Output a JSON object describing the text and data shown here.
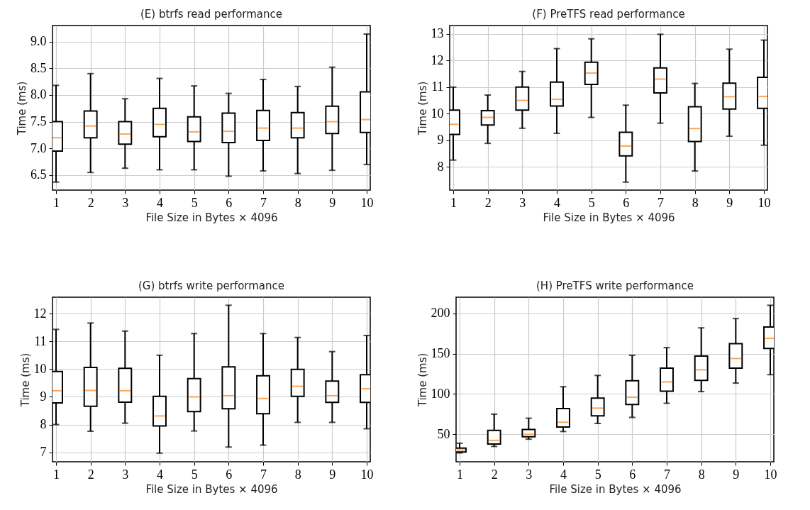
{
  "chart_data": [
    {
      "type": "box",
      "title": "(E) btrfs read performance",
      "xlabel": "File Size in Bytes × 4096",
      "ylabel": "Time (ms)",
      "x": [
        1,
        2,
        3,
        4,
        5,
        6,
        7,
        8,
        9,
        10
      ],
      "xlim": [
        1,
        10
      ],
      "xticks": [
        1,
        2,
        3,
        4,
        5,
        6,
        7,
        8,
        9,
        10
      ],
      "ylim": [
        6.22,
        9.3
      ],
      "yticks": [
        6.5,
        {
          "value": 7,
          "label": "7.0"
        },
        7.5,
        {
          "value": 8,
          "label": "8.0"
        },
        8.5,
        {
          "value": 9,
          "label": "9.0"
        }
      ],
      "grid": true,
      "boxes": [
        {
          "low": 6.37,
          "q1": 6.95,
          "median": 7.2,
          "q3": 7.5,
          "high": 8.18
        },
        {
          "low": 6.55,
          "q1": 7.2,
          "median": 7.42,
          "q3": 7.7,
          "high": 8.4
        },
        {
          "low": 6.63,
          "q1": 7.08,
          "median": 7.27,
          "q3": 7.5,
          "high": 7.93
        },
        {
          "low": 6.6,
          "q1": 7.22,
          "median": 7.45,
          "q3": 7.75,
          "high": 8.31
        },
        {
          "low": 6.6,
          "q1": 7.13,
          "median": 7.31,
          "q3": 7.59,
          "high": 8.17
        },
        {
          "low": 6.48,
          "q1": 7.11,
          "median": 7.32,
          "q3": 7.66,
          "high": 8.03
        },
        {
          "low": 6.58,
          "q1": 7.15,
          "median": 7.38,
          "q3": 7.71,
          "high": 8.29
        },
        {
          "low": 6.53,
          "q1": 7.2,
          "median": 7.38,
          "q3": 7.67,
          "high": 8.16
        },
        {
          "low": 6.59,
          "q1": 7.28,
          "median": 7.5,
          "q3": 7.79,
          "high": 8.52
        },
        {
          "low": 6.7,
          "q1": 7.3,
          "median": 7.54,
          "q3": 8.06,
          "high": 9.14
        }
      ]
    },
    {
      "type": "box",
      "title": "(F) PreTFS read performance",
      "xlabel": "File Size in Bytes × 4096",
      "ylabel": "Time (ms)",
      "x": [
        1,
        2,
        3,
        4,
        5,
        6,
        7,
        8,
        9,
        10
      ],
      "xlim": [
        1,
        10
      ],
      "xticks": [
        1,
        2,
        3,
        4,
        5,
        6,
        7,
        8,
        9,
        10
      ],
      "ylim": [
        7.12,
        13.32
      ],
      "yticks": [
        8,
        9,
        10,
        11,
        12,
        13
      ],
      "grid": true,
      "boxes": [
        {
          "low": 8.25,
          "q1": 9.22,
          "median": 9.6,
          "q3": 10.13,
          "high": 11.0
        },
        {
          "low": 8.88,
          "q1": 9.57,
          "median": 9.86,
          "q3": 10.11,
          "high": 10.7
        },
        {
          "low": 9.45,
          "q1": 10.13,
          "median": 10.5,
          "q3": 11.0,
          "high": 11.59
        },
        {
          "low": 9.26,
          "q1": 10.29,
          "median": 10.54,
          "q3": 11.19,
          "high": 12.45
        },
        {
          "low": 9.86,
          "q1": 11.1,
          "median": 11.53,
          "q3": 11.94,
          "high": 12.82
        },
        {
          "low": 7.42,
          "q1": 8.41,
          "median": 8.78,
          "q3": 9.3,
          "high": 10.32
        },
        {
          "low": 9.64,
          "q1": 10.78,
          "median": 11.3,
          "q3": 11.72,
          "high": 12.99
        },
        {
          "low": 7.84,
          "q1": 8.95,
          "median": 9.44,
          "q3": 10.26,
          "high": 11.14
        },
        {
          "low": 9.15,
          "q1": 10.17,
          "median": 10.64,
          "q3": 11.15,
          "high": 12.43
        },
        {
          "low": 8.81,
          "q1": 10.2,
          "median": 10.65,
          "q3": 11.37,
          "high": 12.77
        }
      ]
    },
    {
      "type": "box",
      "title": "(G) btrfs write performance",
      "xlabel": "File Size in Bytes × 4096",
      "ylabel": "Time (ms)",
      "x": [
        1,
        2,
        3,
        4,
        5,
        6,
        7,
        8,
        9,
        10
      ],
      "xlim": [
        1,
        10
      ],
      "xticks": [
        1,
        2,
        3,
        4,
        5,
        6,
        7,
        8,
        9,
        10
      ],
      "ylim": [
        6.66,
        12.59
      ],
      "yticks": [
        7,
        8,
        9,
        10,
        11,
        12
      ],
      "grid": true,
      "boxes": [
        {
          "low": 8.0,
          "q1": 8.78,
          "median": 9.22,
          "q3": 9.91,
          "high": 11.43
        },
        {
          "low": 7.76,
          "q1": 8.66,
          "median": 9.23,
          "q3": 10.06,
          "high": 11.66
        },
        {
          "low": 8.05,
          "q1": 8.81,
          "median": 9.22,
          "q3": 10.03,
          "high": 11.37
        },
        {
          "low": 6.97,
          "q1": 7.95,
          "median": 8.31,
          "q3": 9.02,
          "high": 10.5
        },
        {
          "low": 7.77,
          "q1": 8.47,
          "median": 9.0,
          "q3": 9.66,
          "high": 11.28
        },
        {
          "low": 7.19,
          "q1": 8.57,
          "median": 9.04,
          "q3": 10.08,
          "high": 12.3
        },
        {
          "low": 7.26,
          "q1": 8.39,
          "median": 8.94,
          "q3": 9.76,
          "high": 11.28
        },
        {
          "low": 8.08,
          "q1": 9.02,
          "median": 9.38,
          "q3": 9.99,
          "high": 11.14
        },
        {
          "low": 8.08,
          "q1": 8.8,
          "median": 9.04,
          "q3": 9.57,
          "high": 10.63
        },
        {
          "low": 7.85,
          "q1": 8.8,
          "median": 9.29,
          "q3": 9.8,
          "high": 11.21
        }
      ]
    },
    {
      "type": "box",
      "title": "(H) PreTFS write performance",
      "xlabel": "File Size in Bytes × 4096",
      "ylabel": "Time (ms)",
      "x": [
        1,
        2,
        3,
        4,
        5,
        6,
        7,
        8,
        9,
        10
      ],
      "xlim": [
        1,
        10
      ],
      "xticks": [
        1,
        2,
        3,
        4,
        5,
        6,
        7,
        8,
        9,
        10
      ],
      "ylim": [
        16,
        220
      ],
      "yticks": [
        50,
        100,
        150,
        200
      ],
      "grid": true,
      "boxes": [
        {
          "low": 27,
          "q1": 28,
          "median": 30.5,
          "q3": 33,
          "high": 39
        },
        {
          "low": 35,
          "q1": 38,
          "median": 42.5,
          "q3": 55,
          "high": 75
        },
        {
          "low": 44,
          "q1": 47,
          "median": 50,
          "q3": 56,
          "high": 70
        },
        {
          "low": 53.5,
          "q1": 59,
          "median": 65,
          "q3": 82,
          "high": 109
        },
        {
          "low": 63.5,
          "q1": 73,
          "median": 82.5,
          "q3": 95,
          "high": 123
        },
        {
          "low": 71,
          "q1": 87,
          "median": 96,
          "q3": 116.5,
          "high": 148
        },
        {
          "low": 88.5,
          "q1": 103.5,
          "median": 115,
          "q3": 132,
          "high": 157.5
        },
        {
          "low": 103,
          "q1": 117,
          "median": 130,
          "q3": 147,
          "high": 182
        },
        {
          "low": 113.5,
          "q1": 132,
          "median": 144,
          "q3": 162.5,
          "high": 193.5
        },
        {
          "low": 124,
          "q1": 156.5,
          "median": 169,
          "q3": 183,
          "high": 210
        }
      ]
    }
  ]
}
